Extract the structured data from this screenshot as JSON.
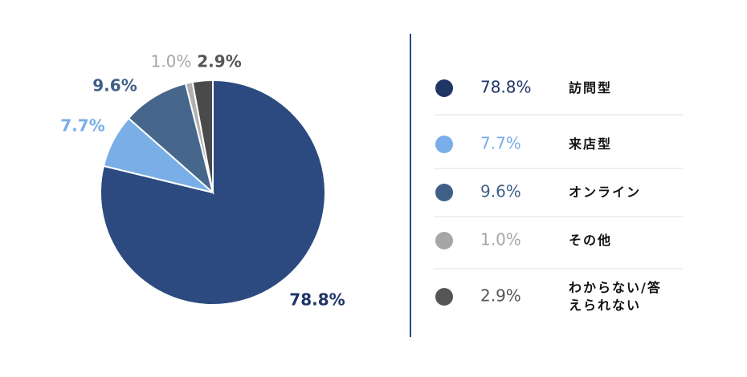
{
  "chart_data": {
    "type": "pie",
    "categories": [
      "訪問型",
      "来店型",
      "オンライン",
      "その他",
      "わからない/答えられない"
    ],
    "values": [
      78.8,
      7.7,
      9.6,
      1.0,
      2.9
    ],
    "value_labels": [
      "78.8%",
      "7.7%",
      "9.6%",
      "1.0%",
      "2.9%"
    ],
    "colors": [
      "#2c4a80",
      "#7aaee6",
      "#46668c",
      "#b0b0b0",
      "#4a4a4a"
    ],
    "label_colors": [
      "#1e3566",
      "#79aee8",
      "#3f5f86",
      "#a6a6a6",
      "#555555"
    ],
    "legend": "right"
  }
}
